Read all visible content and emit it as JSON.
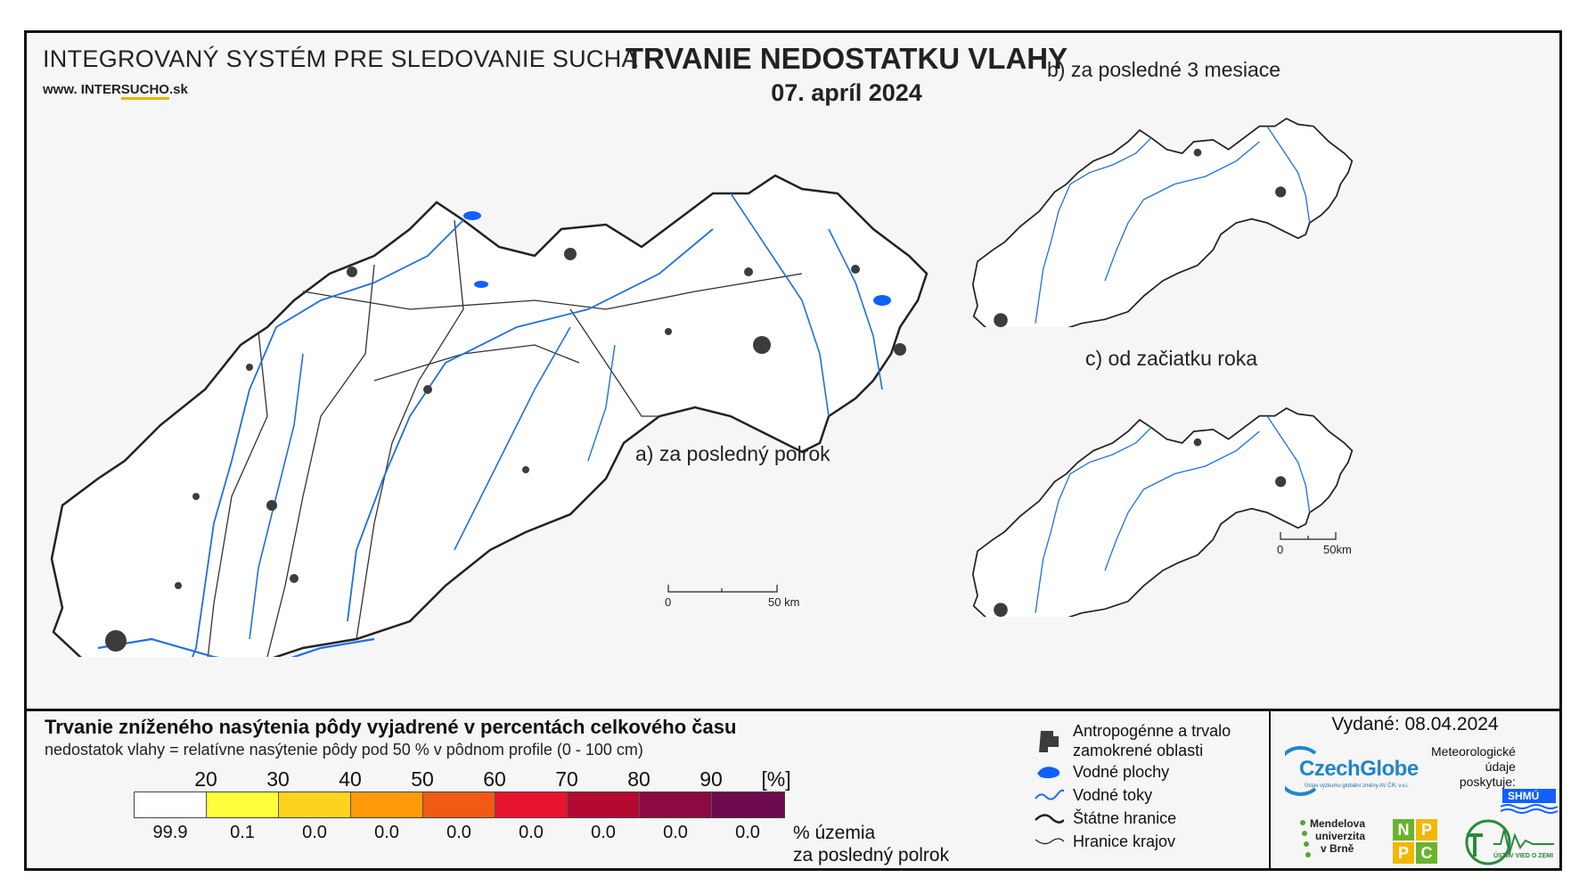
{
  "header": {
    "org_title": "INTEGROVANÝ SYSTÉM PRE SLEDOVANIE SUCHA",
    "url_prefix": "www. INTER",
    "url_highlight": "SUCHO",
    "url_suffix": ".sk",
    "title": "TRVANIE NEDOSTATKU VLAHY",
    "date": "07. apríl 2024"
  },
  "panels": {
    "a_label": "a) za posledný polrok",
    "b_label": "b) za posledné 3 mesiace",
    "c_label": "c) od začiatku roka"
  },
  "scale_bars": {
    "main": {
      "start": "0",
      "end": "50 km"
    },
    "small": {
      "start": "0",
      "end": "50km"
    }
  },
  "legend": {
    "title": "Trvanie zníženého nasýtenia pôdy vyjadrené v percentách celkového času",
    "subtitle": "nedostatok vlahy = relatívne nasýtenie pôdy pod 50 % v pôdnom profile (0 - 100 cm)",
    "thresholds": [
      "20",
      "30",
      "40",
      "50",
      "60",
      "70",
      "80",
      "90",
      "[%]"
    ],
    "colors": [
      "#ffffff",
      "#ffff3c",
      "#ffd21e",
      "#ff9a0a",
      "#f05a14",
      "#e8142d",
      "#b40a32",
      "#8c0a41",
      "#6e0a50"
    ],
    "percentages": [
      "99.9",
      "0.1",
      "0.0",
      "0.0",
      "0.0",
      "0.0",
      "0.0",
      "0.0",
      "0.0"
    ],
    "percent_label_1": "% územia",
    "percent_label_2": "za posledný polrok"
  },
  "symbols": [
    {
      "icon": "urban-area-icon",
      "label_1": "Antropogénne a trvalo",
      "label_2": "zamokrené oblasti"
    },
    {
      "icon": "water-body-icon",
      "label_1": "Vodné plochy",
      "label_2": ""
    },
    {
      "icon": "river-icon",
      "label_1": "Vodné toky",
      "label_2": ""
    },
    {
      "icon": "state-border-icon",
      "label_1": "Štátne hranice",
      "label_2": ""
    },
    {
      "icon": "region-border-icon",
      "label_1": "Hranice krajov",
      "label_2": ""
    }
  ],
  "footer": {
    "issued": "Vydané: 08.04.2024",
    "czechglobe": "CzechGlobe",
    "czechglobe_sub": "Ústav výzkumu globální změny AV ČR, v.v.i.",
    "meteo_1": "Meteorologické",
    "meteo_2": "údaje",
    "meteo_3": "poskytuje:",
    "shmu": "SHMÚ",
    "mendel_1": "Mendelova",
    "mendel_2": "univerzita",
    "mendel_3": "v Brně",
    "npc": [
      "N",
      "P",
      "P",
      "C"
    ],
    "uvz": "ÚSTAV VIED O ZEMI"
  },
  "colors": {
    "river": "#1f6fe0",
    "urban": "#3c3c3c",
    "border": "#222222",
    "water": "#1060ff"
  }
}
